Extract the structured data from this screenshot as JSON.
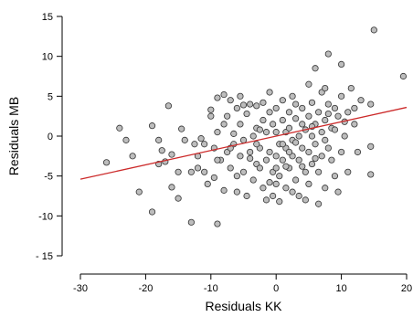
{
  "chart_data": {
    "type": "scatter",
    "title": "",
    "xlabel": "Residuals KK",
    "ylabel": "Residuals MB",
    "xlim": [
      -30,
      20
    ],
    "ylim": [
      -15,
      15
    ],
    "xticks": [
      -30,
      -20,
      -10,
      0,
      10,
      20
    ],
    "xtick_labels": [
      "-30",
      "-20",
      "-10",
      "0",
      "10",
      "20"
    ],
    "yticks": [
      -15,
      -10,
      -5,
      0,
      5,
      10,
      15
    ],
    "ytick_labels": [
      "- 15",
      "-10",
      "-5",
      "0",
      "5",
      "10",
      "15"
    ],
    "grid": false,
    "colors": {
      "point_fill": "#bdbdbd",
      "point_stroke": "#333333",
      "fit_line": "#cc2a2a",
      "axes": "#000000"
    },
    "fit_line": {
      "x": [
        -30,
        20
      ],
      "y": [
        -5.4,
        3.6
      ]
    },
    "points": [
      [
        -26.0,
        -3.3
      ],
      [
        -24.0,
        1.0
      ],
      [
        -23.0,
        -0.5
      ],
      [
        -22.0,
        -2.5
      ],
      [
        -21.0,
        -7.0
      ],
      [
        -19.0,
        1.3
      ],
      [
        -19.0,
        -9.5
      ],
      [
        -18.0,
        -0.5
      ],
      [
        -17.5,
        -1.8
      ],
      [
        -17.0,
        -3.2
      ],
      [
        -16.5,
        3.8
      ],
      [
        -16.0,
        -2.3
      ],
      [
        -16.0,
        -6.4
      ],
      [
        -15.0,
        -7.8
      ],
      [
        -14.5,
        0.9
      ],
      [
        -14.0,
        -0.5
      ],
      [
        -13.0,
        -10.8
      ],
      [
        -13.0,
        -4.5
      ],
      [
        -12.5,
        -1.0
      ],
      [
        -12.0,
        -2.5
      ],
      [
        -11.0,
        -4.5
      ],
      [
        -11.0,
        -1.0
      ],
      [
        -10.5,
        -6.0
      ],
      [
        -10.0,
        3.3
      ],
      [
        -10.0,
        2.5
      ],
      [
        -9.5,
        -5.2
      ],
      [
        -9.5,
        -1.5
      ],
      [
        -9.0,
        -11.0
      ],
      [
        -9.0,
        4.8
      ],
      [
        -9.0,
        0.5
      ],
      [
        -8.5,
        -3.0
      ],
      [
        -8.0,
        5.2
      ],
      [
        -8.0,
        1.5
      ],
      [
        -8.0,
        -6.8
      ],
      [
        -7.5,
        2.5
      ],
      [
        -7.5,
        -2.0
      ],
      [
        -7.0,
        4.5
      ],
      [
        -7.0,
        -4.0
      ],
      [
        -6.5,
        -1.0
      ],
      [
        -6.5,
        0.3
      ],
      [
        -6.0,
        3.5
      ],
      [
        -6.0,
        -5.0
      ],
      [
        -5.5,
        -2.5
      ],
      [
        -5.5,
        1.5
      ],
      [
        -5.0,
        3.9
      ],
      [
        -5.0,
        -4.5
      ],
      [
        -5.0,
        -0.5
      ],
      [
        -4.5,
        -7.5
      ],
      [
        -4.5,
        2.8
      ],
      [
        -4.0,
        -2.0
      ],
      [
        -4.0,
        4.0
      ],
      [
        -3.5,
        0.0
      ],
      [
        -3.5,
        -5.5
      ],
      [
        -3.0,
        -3.5
      ],
      [
        -3.0,
        1.0
      ],
      [
        -3.0,
        3.8
      ],
      [
        -2.5,
        -1.5
      ],
      [
        -2.5,
        -4.0
      ],
      [
        -2.0,
        2.0
      ],
      [
        -2.0,
        4.2
      ],
      [
        -2.0,
        -6.5
      ],
      [
        -1.5,
        -3.0
      ],
      [
        -1.5,
        0.5
      ],
      [
        -1.0,
        -2.0
      ],
      [
        -1.0,
        5.5
      ],
      [
        -1.0,
        3.0
      ],
      [
        -0.5,
        -7.5
      ],
      [
        -0.5,
        -4.5
      ],
      [
        -0.5,
        1.5
      ],
      [
        0.0,
        -2.5
      ],
      [
        0.0,
        -6.0
      ],
      [
        0.0,
        0.5
      ],
      [
        0.0,
        3.5
      ],
      [
        0.5,
        -1.0
      ],
      [
        0.5,
        -5.0
      ],
      [
        1.0,
        2.0
      ],
      [
        1.0,
        -3.0
      ],
      [
        1.0,
        4.5
      ],
      [
        1.5,
        0.5
      ],
      [
        1.5,
        -6.5
      ],
      [
        1.5,
        -1.5
      ],
      [
        2.0,
        3.0
      ],
      [
        2.0,
        -4.0
      ],
      [
        2.0,
        1.0
      ],
      [
        2.5,
        5.0
      ],
      [
        2.5,
        -2.5
      ],
      [
        2.5,
        -0.5
      ],
      [
        3.0,
        2.2
      ],
      [
        3.0,
        -5.5
      ],
      [
        3.0,
        4.0
      ],
      [
        3.5,
        0.0
      ],
      [
        3.5,
        -3.0
      ],
      [
        3.5,
        -7.5
      ],
      [
        4.0,
        1.5
      ],
      [
        4.0,
        -1.5
      ],
      [
        4.0,
        3.5
      ],
      [
        4.5,
        -4.5
      ],
      [
        4.5,
        0.8
      ],
      [
        5.0,
        6.5
      ],
      [
        5.0,
        2.5
      ],
      [
        5.0,
        -2.0
      ],
      [
        5.0,
        -6.0
      ],
      [
        5.5,
        4.2
      ],
      [
        5.5,
        0.0
      ],
      [
        5.5,
        -3.5
      ],
      [
        6.0,
        1.5
      ],
      [
        6.0,
        -1.0
      ],
      [
        6.0,
        8.5
      ],
      [
        6.5,
        3.0
      ],
      [
        6.5,
        -4.5
      ],
      [
        7.0,
        5.5
      ],
      [
        7.0,
        0.5
      ],
      [
        7.0,
        -2.5
      ],
      [
        7.5,
        2.0
      ],
      [
        7.5,
        -6.5
      ],
      [
        7.5,
        6.0
      ],
      [
        8.0,
        10.3
      ],
      [
        8.0,
        4.0
      ],
      [
        8.0,
        -1.5
      ],
      [
        8.5,
        1.0
      ],
      [
        8.5,
        -3.0
      ],
      [
        9.0,
        3.5
      ],
      [
        9.0,
        -5.0
      ],
      [
        9.5,
        2.5
      ],
      [
        10.0,
        9.0
      ],
      [
        10.0,
        -2.0
      ],
      [
        10.0,
        5.0
      ],
      [
        10.5,
        0.0
      ],
      [
        11.0,
        -4.5
      ],
      [
        11.0,
        3.0
      ],
      [
        11.5,
        6.0
      ],
      [
        12.0,
        1.5
      ],
      [
        12.5,
        -2.0
      ],
      [
        13.0,
        4.5
      ],
      [
        14.5,
        4.0
      ],
      [
        14.5,
        -1.3
      ],
      [
        14.5,
        -4.8
      ],
      [
        15.0,
        13.3
      ],
      [
        19.5,
        7.5
      ],
      [
        -15.0,
        -4.5
      ],
      [
        -18.0,
        -3.5
      ],
      [
        -12.0,
        -4.0
      ],
      [
        -6.0,
        -7.0
      ],
      [
        -3.0,
        -1.0
      ],
      [
        -1.5,
        -8.0
      ],
      [
        0.5,
        -8.2
      ],
      [
        2.5,
        -7.0
      ],
      [
        4.5,
        -8.0
      ],
      [
        6.5,
        -8.5
      ],
      [
        9.5,
        -7.0
      ],
      [
        -7.0,
        -1.5
      ],
      [
        -4.0,
        -2.8
      ],
      [
        1.0,
        -1.0
      ],
      [
        3.0,
        -0.8
      ],
      [
        5.5,
        1.2
      ],
      [
        7.5,
        -0.5
      ],
      [
        9.0,
        0.8
      ],
      [
        -2.5,
        0.8
      ],
      [
        0.0,
        -4.0
      ],
      [
        2.0,
        -2.0
      ],
      [
        4.0,
        -3.8
      ],
      [
        6.0,
        -2.8
      ],
      [
        8.0,
        2.8
      ],
      [
        10.5,
        1.8
      ],
      [
        12.0,
        3.5
      ],
      [
        -9.0,
        -3.0
      ],
      [
        -11.5,
        -0.3
      ],
      [
        -5.5,
        5.0
      ],
      [
        -1.0,
        -5.8
      ],
      [
        1.5,
        -3.8
      ]
    ]
  }
}
